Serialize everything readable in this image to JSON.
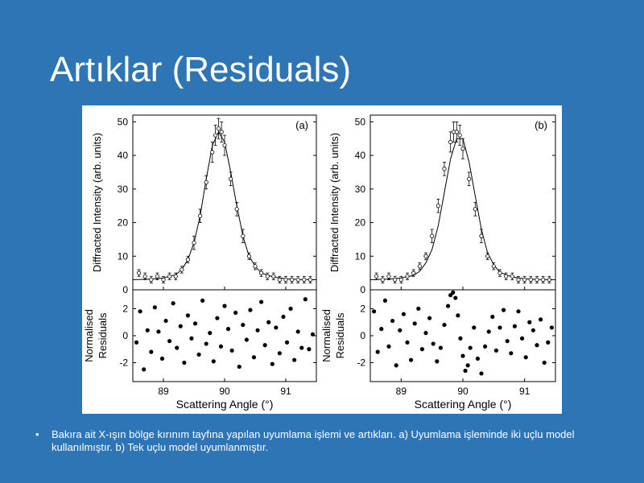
{
  "slide": {
    "title": "Artıklar (Residuals)",
    "bullet": "Bakıra ait X-ışın bölge kırınım tayfına yapılan uyumlama işlemi ve artıkları. a) Uyumlama işleminde iki uçlu model kullanılmıştır. b) Tek uçlu model uyumlanmıştır."
  },
  "colors": {
    "background": "#2e75b6",
    "text": "#ffffff",
    "figure_bg": "#ffffff",
    "ink": "#000000"
  },
  "chart_data": [
    {
      "panel": "(a)",
      "type": "scatter",
      "subplot": "intensity",
      "ylabel": "Diffracted Intensity (arb. units)",
      "yticks": [
        "0",
        "10",
        "20",
        "30",
        "40",
        "50"
      ],
      "ylim": [
        0,
        52
      ],
      "xlim": [
        88.5,
        91.5
      ],
      "series": [
        {
          "kind": "data",
          "marker": "open-circle-errorbar",
          "x": [
            88.6,
            88.7,
            88.8,
            88.9,
            89.0,
            89.1,
            89.2,
            89.3,
            89.4,
            89.5,
            89.6,
            89.7,
            89.8,
            89.85,
            89.9,
            89.95,
            90.0,
            90.1,
            90.2,
            90.3,
            90.4,
            90.5,
            90.6,
            90.7,
            90.8,
            90.9,
            91.0,
            91.1,
            91.2,
            91.3,
            91.4
          ],
          "y": [
            5,
            4,
            3,
            4,
            3,
            4,
            4,
            6,
            9,
            14,
            22,
            32,
            41,
            46,
            48,
            47,
            43,
            33,
            24,
            16,
            10,
            7,
            5,
            4,
            4,
            3,
            3,
            3,
            3,
            3,
            3
          ],
          "yerr": [
            1,
            1,
            1,
            1,
            1,
            1,
            1,
            1,
            1,
            2,
            2,
            2,
            3,
            3,
            3,
            3,
            3,
            2,
            2,
            2,
            1,
            1,
            1,
            1,
            1,
            1,
            1,
            1,
            1,
            1,
            1
          ]
        },
        {
          "kind": "fit",
          "style": "solid line",
          "x": [
            88.5,
            88.8,
            89.0,
            89.2,
            89.3,
            89.4,
            89.5,
            89.6,
            89.7,
            89.8,
            89.9,
            90.0,
            90.1,
            90.2,
            90.3,
            90.4,
            90.5,
            90.6,
            90.8,
            91.0,
            91.2,
            91.5
          ],
          "y": [
            3,
            3.2,
            3.5,
            4.5,
            6,
            9,
            14,
            22,
            33,
            43,
            47,
            44,
            35,
            25,
            16,
            10,
            7,
            5,
            3.8,
            3.3,
            3.1,
            3
          ]
        }
      ]
    },
    {
      "panel": "(a)",
      "type": "scatter",
      "subplot": "residuals",
      "ylabel": "Normalised Residuals",
      "xlabel": "Scattering Angle (°)",
      "yticks": [
        "-2",
        "0",
        "2"
      ],
      "ylim": [
        -3.4,
        3.4
      ],
      "xticks": [
        "89",
        "90",
        "91"
      ],
      "xlim": [
        88.5,
        91.5
      ],
      "pattern": "random scatter about zero",
      "x": [
        88.56,
        88.62,
        88.68,
        88.74,
        88.8,
        88.86,
        88.92,
        88.98,
        89.04,
        89.1,
        89.16,
        89.22,
        89.28,
        89.34,
        89.4,
        89.46,
        89.52,
        89.58,
        89.64,
        89.7,
        89.76,
        89.82,
        89.88,
        89.94,
        90.0,
        90.06,
        90.12,
        90.18,
        90.24,
        90.3,
        90.36,
        90.42,
        90.48,
        90.54,
        90.6,
        90.66,
        90.72,
        90.78,
        90.84,
        90.9,
        90.96,
        91.02,
        91.08,
        91.14,
        91.2,
        91.26,
        91.32,
        91.38,
        91.44
      ],
      "y": [
        -0.5,
        1.8,
        -2.5,
        0.4,
        -1.2,
        2.1,
        0.3,
        -1.7,
        1.1,
        -0.4,
        2.4,
        -0.9,
        0.7,
        -2.0,
        1.5,
        -0.2,
        0.9,
        -1.4,
        2.6,
        -0.6,
        0.2,
        -1.9,
        1.3,
        -0.8,
        2.2,
        0.5,
        -1.1,
        1.7,
        -2.3,
        0.8,
        -0.3,
        1.9,
        -1.6,
        0.4,
        2.5,
        -0.7,
        1.0,
        -2.1,
        0.6,
        -1.3,
        1.4,
        -0.5,
        2.0,
        -1.8,
        0.3,
        -0.9,
        2.7,
        -1.0,
        0.1
      ]
    },
    {
      "panel": "(b)",
      "type": "scatter",
      "subplot": "intensity",
      "ylabel": "Diffracted Intensity (arb. units)",
      "yticks": [
        "0",
        "10",
        "20",
        "30",
        "40",
        "50"
      ],
      "ylim": [
        0,
        52
      ],
      "xlim": [
        88.5,
        91.5
      ],
      "series": [
        {
          "kind": "data",
          "marker": "open-circle-errorbar",
          "x": [
            88.6,
            88.7,
            88.8,
            88.9,
            89.0,
            89.1,
            89.2,
            89.3,
            89.4,
            89.5,
            89.6,
            89.7,
            89.8,
            89.85,
            89.9,
            89.95,
            90.0,
            90.1,
            90.2,
            90.3,
            90.4,
            90.5,
            90.6,
            90.7,
            90.8,
            90.9,
            91.0,
            91.1,
            91.2,
            91.3,
            91.4
          ],
          "y": [
            4,
            3,
            4,
            3,
            3,
            4,
            5,
            7,
            10,
            16,
            25,
            36,
            44,
            47,
            47,
            46,
            42,
            33,
            24,
            16,
            10,
            7,
            5,
            4,
            4,
            3,
            3,
            3,
            3,
            3,
            3
          ],
          "yerr": [
            1,
            1,
            1,
            1,
            1,
            1,
            1,
            1,
            1,
            2,
            2,
            2,
            3,
            3,
            3,
            3,
            3,
            2,
            2,
            2,
            1,
            1,
            1,
            1,
            1,
            1,
            1,
            1,
            1,
            1,
            1
          ]
        },
        {
          "kind": "fit",
          "style": "solid line",
          "x": [
            88.5,
            88.8,
            89.0,
            89.2,
            89.3,
            89.4,
            89.5,
            89.6,
            89.7,
            89.8,
            89.9,
            90.0,
            90.1,
            90.2,
            90.3,
            90.4,
            90.5,
            90.6,
            90.8,
            91.0,
            91.2,
            91.5
          ],
          "y": [
            3,
            3.2,
            3.5,
            4.3,
            5.5,
            8,
            12,
            19,
            29,
            39,
            45,
            45,
            38,
            28,
            18,
            11,
            7.5,
            5.2,
            3.8,
            3.3,
            3.1,
            3
          ]
        }
      ]
    },
    {
      "panel": "(b)",
      "type": "scatter",
      "subplot": "residuals",
      "ylabel": "Normalised Residuals",
      "xlabel": "Scattering Angle (°)",
      "yticks": [
        "-2",
        "0",
        "2"
      ],
      "ylim": [
        -3.4,
        3.4
      ],
      "xticks": [
        "89",
        "90",
        "91"
      ],
      "xlim": [
        88.5,
        91.5
      ],
      "pattern": "structured oscillation near 90°",
      "x": [
        88.56,
        88.62,
        88.68,
        88.74,
        88.8,
        88.86,
        88.92,
        88.98,
        89.04,
        89.1,
        89.16,
        89.22,
        89.28,
        89.34,
        89.4,
        89.46,
        89.52,
        89.58,
        89.64,
        89.7,
        89.76,
        89.8,
        89.84,
        89.88,
        89.92,
        89.96,
        90.0,
        90.04,
        90.08,
        90.12,
        90.18,
        90.24,
        90.3,
        90.36,
        90.42,
        90.48,
        90.54,
        90.6,
        90.66,
        90.72,
        90.78,
        90.84,
        90.9,
        90.96,
        91.02,
        91.08,
        91.14,
        91.2,
        91.26,
        91.32,
        91.38,
        91.44
      ],
      "y": [
        1.8,
        -1.2,
        0.5,
        2.6,
        -0.8,
        1.1,
        -2.2,
        0.4,
        1.6,
        -0.5,
        -1.8,
        0.9,
        2.0,
        -1.0,
        0.2,
        1.3,
        -0.6,
        -1.9,
        -0.9,
        0.8,
        2.2,
        3.0,
        3.2,
        2.8,
        1.5,
        -0.2,
        -1.5,
        -2.6,
        -2.2,
        -0.9,
        0.6,
        -1.7,
        -2.8,
        -0.8,
        0.3,
        1.4,
        -1.1,
        0.6,
        1.9,
        -0.4,
        -1.3,
        0.7,
        1.8,
        -0.2,
        -1.6,
        1.0,
        0.4,
        -0.7,
        1.2,
        -2.0,
        -0.5,
        0.6
      ]
    }
  ]
}
